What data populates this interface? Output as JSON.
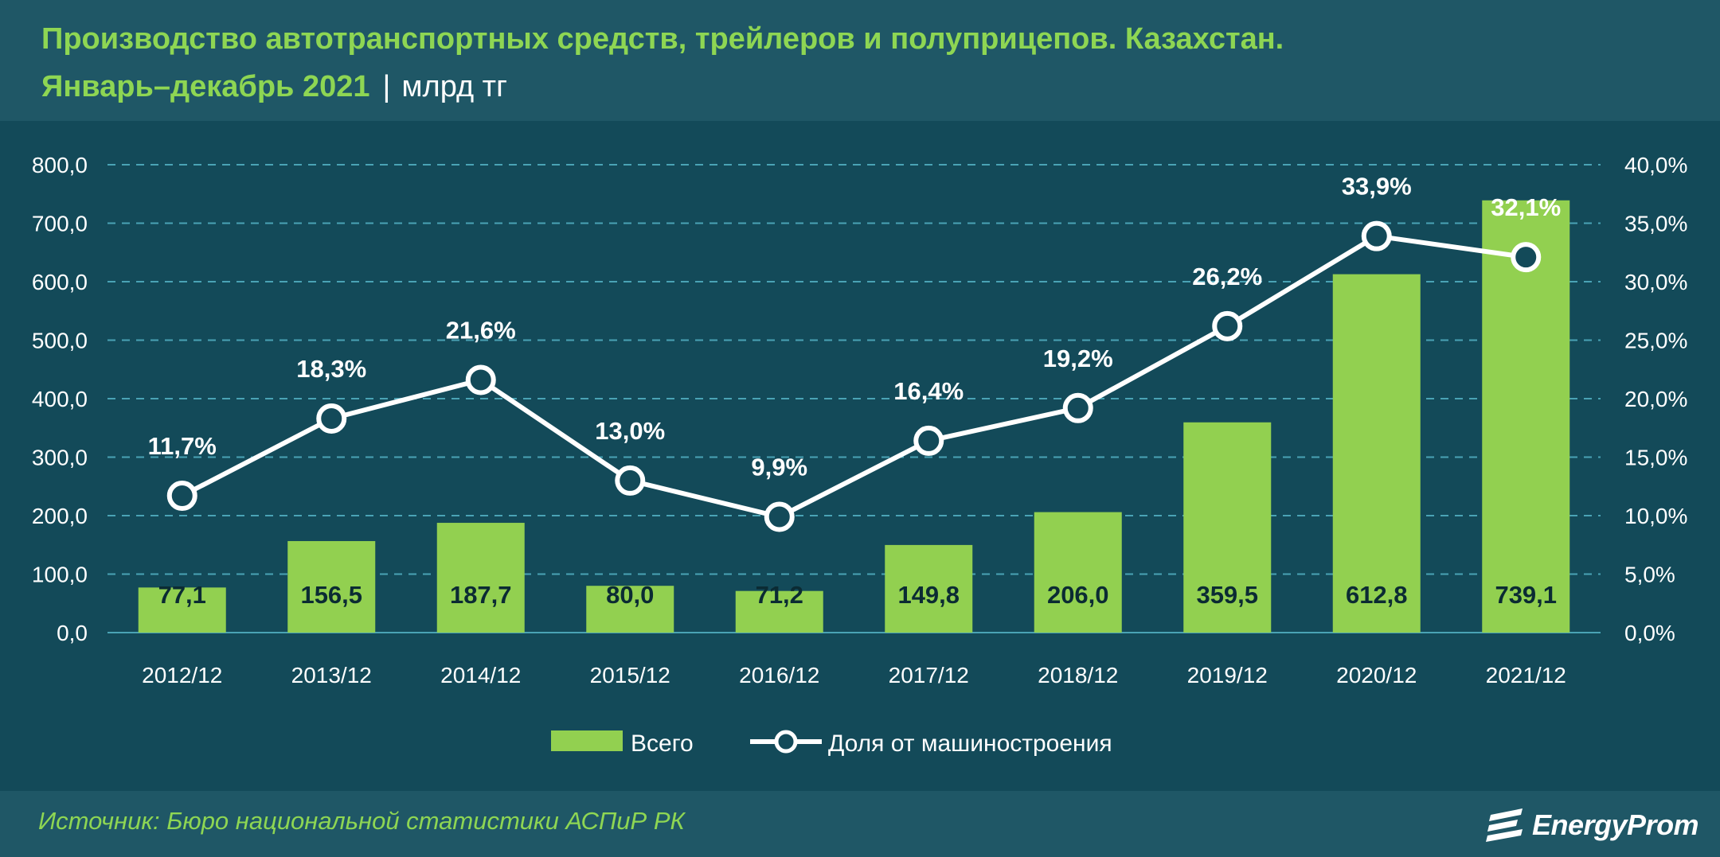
{
  "header": {
    "title_line1": "Производство автотранспортных средств, трейлеров и полуприцепов. Казахстан.",
    "title_line2": "Январь–декабрь 2021",
    "separator": "|",
    "unit": "млрд тг"
  },
  "footer": {
    "source": "Источник: Бюро национальной статистики АСПиР РК",
    "logo_text": "EnergyProm",
    "logo_icon": "energyprom-logo-icon"
  },
  "colors": {
    "background": "#134a59",
    "panel": "#1f5766",
    "title": "#8ed653",
    "bar": "#92d050",
    "line": "#ffffff",
    "grid": "#4aa3b5"
  },
  "chart_data": {
    "type": "bar",
    "categories": [
      "2012/12",
      "2013/12",
      "2014/12",
      "2015/12",
      "2016/12",
      "2017/12",
      "2018/12",
      "2019/12",
      "2020/12",
      "2021/12"
    ],
    "series": [
      {
        "name": "Всего",
        "type": "bar",
        "axis": "left",
        "values": [
          77.1,
          156.5,
          187.7,
          80.0,
          71.2,
          149.8,
          206.0,
          359.5,
          612.8,
          739.1
        ],
        "labels": [
          "77,1",
          "156,5",
          "187,7",
          "80,0",
          "71,2",
          "149,8",
          "206,0",
          "359,5",
          "612,8",
          "739,1"
        ]
      },
      {
        "name": "Доля от машиностроения",
        "type": "line",
        "axis": "right",
        "values": [
          11.7,
          18.3,
          21.6,
          13.0,
          9.9,
          16.4,
          19.2,
          26.2,
          33.9,
          32.1
        ],
        "labels": [
          "11,7%",
          "18,3%",
          "21,6%",
          "13,0%",
          "9,9%",
          "16,4%",
          "19,2%",
          "26,2%",
          "33,9%",
          "32,1%"
        ]
      }
    ],
    "y_left": {
      "min": 0,
      "max": 800,
      "ticks": [
        "0,0",
        "100,0",
        "200,0",
        "300,0",
        "400,0",
        "500,0",
        "600,0",
        "700,0",
        "800,0"
      ]
    },
    "y_right": {
      "min": 0,
      "max": 40,
      "ticks": [
        "0,0%",
        "5,0%",
        "10,0%",
        "15,0%",
        "20,0%",
        "25,0%",
        "30,0%",
        "35,0%",
        "40,0%"
      ]
    },
    "grid": "dashed horizontal",
    "legend": {
      "position": "bottom",
      "items": [
        "Всего",
        "Доля от машиностроения"
      ]
    }
  }
}
